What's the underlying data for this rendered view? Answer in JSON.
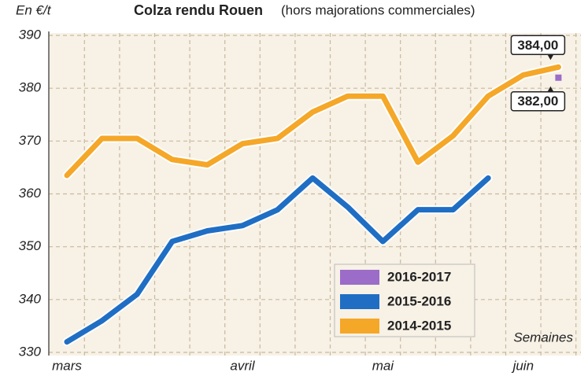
{
  "chart_data": {
    "type": "line",
    "title": "Colza rendu Rouen",
    "subtitle": "(hors majorations commerciales)",
    "y_label": "En €/t",
    "x_label": "Semaines",
    "categories": [
      "mars",
      null,
      null,
      null,
      null,
      "avril",
      null,
      null,
      null,
      "mai",
      null,
      null,
      null,
      "juin",
      null
    ],
    "ylim": [
      330,
      390
    ],
    "yticks": [
      330,
      340,
      350,
      360,
      370,
      380,
      390
    ],
    "grid": true,
    "series": [
      {
        "name": "2016-2017",
        "color": "#9b6cc8",
        "values": [
          null,
          null,
          null,
          null,
          null,
          null,
          null,
          null,
          null,
          null,
          null,
          null,
          null,
          null,
          382
        ],
        "value_labels": [
          null,
          null,
          null,
          null,
          null,
          null,
          null,
          null,
          null,
          null,
          null,
          null,
          null,
          null,
          "382,00"
        ]
      },
      {
        "name": "2015-2016",
        "color": "#1f6ec4",
        "values": [
          332,
          336,
          341,
          351,
          353,
          354,
          357,
          363,
          357.5,
          351,
          357,
          357,
          363,
          null,
          null
        ]
      },
      {
        "name": "2014-2015",
        "color": "#f5a728",
        "values": [
          363.5,
          370.5,
          370.5,
          366.5,
          365.5,
          369.5,
          370.5,
          375.5,
          378.5,
          378.5,
          366,
          371,
          378.5,
          382.5,
          384
        ],
        "value_labels": [
          null,
          null,
          null,
          null,
          null,
          null,
          null,
          null,
          null,
          null,
          null,
          null,
          null,
          null,
          "384,00"
        ]
      }
    ]
  }
}
